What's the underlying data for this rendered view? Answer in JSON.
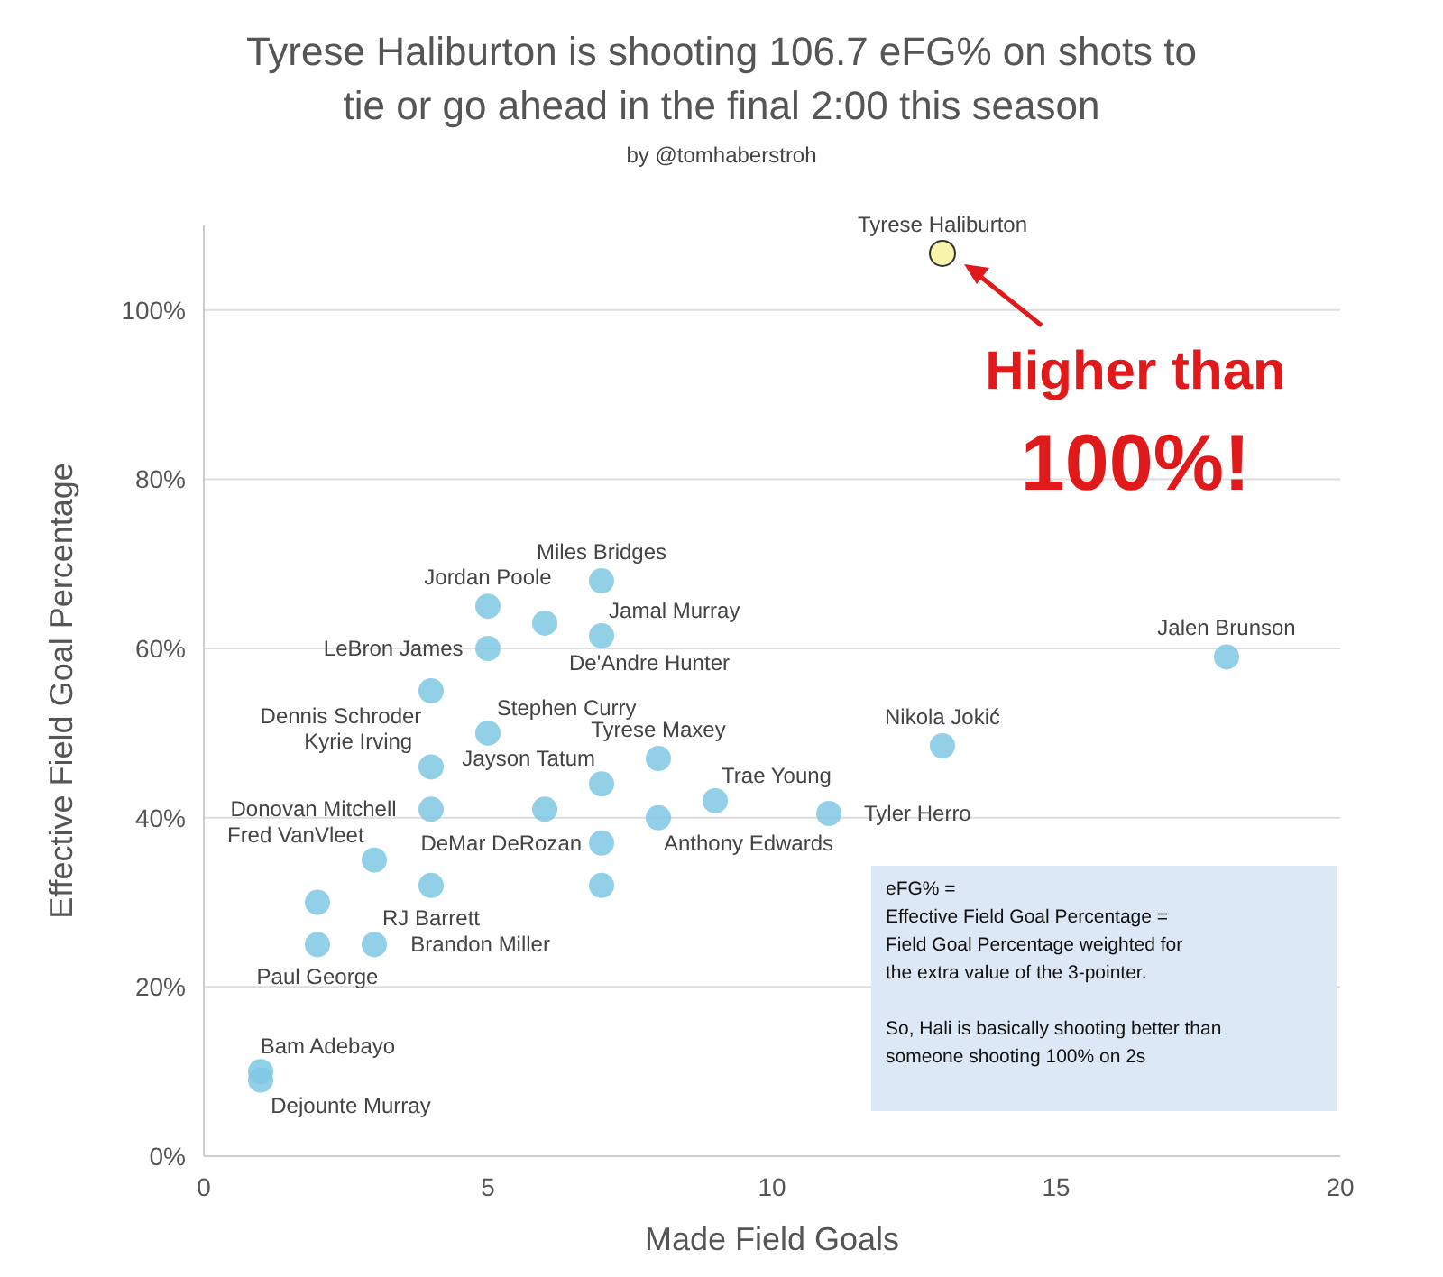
{
  "chart_data": {
    "type": "scatter",
    "title": "Tyrese Haliburton is shooting 106.7 eFG% on shots to tie or go ahead in the final 2:00 this season",
    "subtitle": "by @tomhaberstroh",
    "xlabel": "Made Field Goals",
    "ylabel": "Effective Field Goal Percentage",
    "x": [
      13,
      18,
      13,
      11,
      7,
      7,
      6,
      5,
      5,
      4,
      8,
      9,
      7,
      8,
      7,
      5,
      4,
      4,
      4,
      3,
      2,
      3,
      1,
      1,
      6,
      7,
      2
    ],
    "values": [
      106.7,
      59,
      48.5,
      40.5,
      68,
      61.5,
      63,
      65,
      60,
      55,
      47,
      42,
      44,
      40,
      37,
      50,
      46,
      41,
      32,
      35,
      25,
      25,
      10,
      9,
      41,
      32,
      30
    ],
    "value_labels": [
      "Tyrese Haliburton",
      "Jalen Brunson",
      "Nikola Jokić",
      "Tyler Herro",
      "Miles Bridges",
      "Jamal Murray",
      "De'Andre Hunter",
      "Jordan Poole",
      "LeBron James",
      "Dennis Schroder",
      "Tyrese Maxey",
      "Trae Young",
      "Jayson Tatum",
      "Anthony Edwards",
      "DeMar DeRozan",
      "Stephen Curry",
      "Kyrie Irving",
      "Donovan Mitchell",
      "RJ Barrett",
      "Fred VanVleet",
      "Paul George",
      "Brandon Miller",
      "Bam Adebayo",
      "Dejounte Murray",
      null,
      null,
      null
    ],
    "colors": [
      "#f7f29a",
      "#7ec8e3",
      "#7ec8e3",
      "#7ec8e3",
      "#7ec8e3",
      "#7ec8e3",
      "#7ec8e3",
      "#7ec8e3",
      "#7ec8e3",
      "#7ec8e3",
      "#7ec8e3",
      "#7ec8e3",
      "#7ec8e3",
      "#7ec8e3",
      "#7ec8e3",
      "#7ec8e3",
      "#7ec8e3",
      "#7ec8e3",
      "#7ec8e3",
      "#7ec8e3",
      "#7ec8e3",
      "#7ec8e3",
      "#7ec8e3",
      "#7ec8e3",
      "#7ec8e3",
      "#7ec8e3",
      "#7ec8e3"
    ],
    "xlim": [
      0,
      20
    ],
    "xticks": [
      0,
      5,
      10,
      15,
      20
    ],
    "ylim": [
      0,
      110
    ],
    "yticks": [
      {
        "value": 0,
        "label": "0%"
      },
      {
        "value": 20,
        "label": "20%"
      },
      {
        "value": 40,
        "label": "40%"
      },
      {
        "value": 60,
        "label": "60%"
      },
      {
        "value": 80,
        "label": "80%"
      },
      {
        "value": 100,
        "label": "100%"
      }
    ],
    "grid": "y",
    "marker": "circle",
    "annotations": [
      {
        "text": "Higher than\n100%!",
        "x": 13,
        "y": 106.7
      },
      "eFG% =\nEffective Field Goal Percentage =\nField Goal Percentage weighted for\nthe extra value of the 3-pointer.\n\nSo, Hali is basically shooting better than\nsomeone shooting 100% on 2s"
    ]
  }
}
